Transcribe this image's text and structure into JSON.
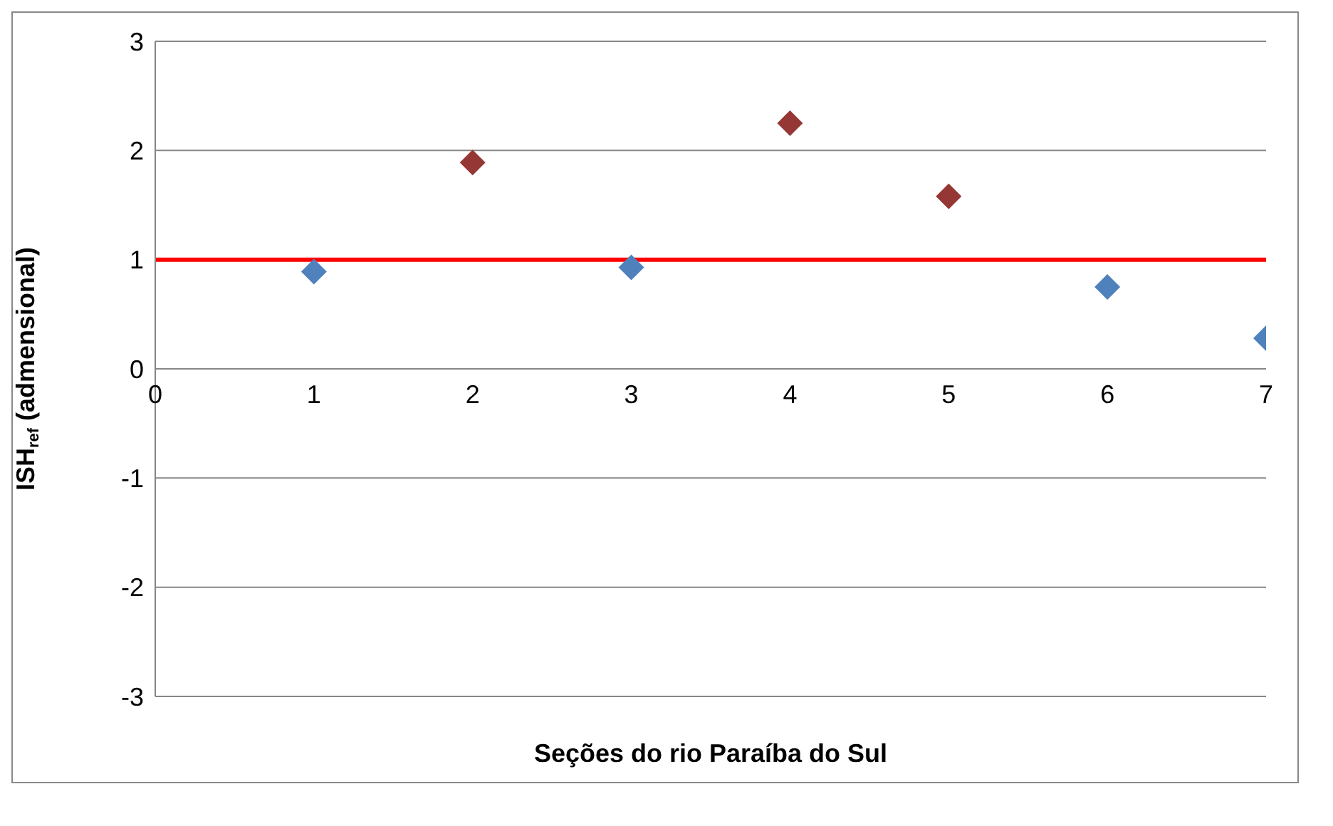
{
  "chart_data": {
    "type": "scatter",
    "xlabel": "Seções do rio Paraíba do Sul",
    "ylabel": "ISH$_{ref}$ (admensional)",
    "series": [
      {
        "color": "#4f81bd",
        "x": [
          1,
          3,
          6,
          7
        ],
        "values": [
          0.89,
          0.93,
          0.75,
          0.28
        ]
      },
      {
        "color": "#953735",
        "x": [
          2,
          4,
          5
        ],
        "values": [
          1.89,
          2.25,
          1.58
        ]
      }
    ],
    "xlim": [
      0,
      7
    ],
    "xticks": [
      0,
      1,
      2,
      3,
      4,
      5,
      6,
      7
    ],
    "ylim": [
      -3,
      3
    ],
    "yticks": [
      -3,
      -2,
      -1,
      0,
      1,
      2,
      3
    ],
    "grid": "y",
    "marker": "diamond",
    "ref_lines": [
      {
        "axis": "y",
        "value": 1,
        "color": "#ff0000"
      }
    ]
  }
}
